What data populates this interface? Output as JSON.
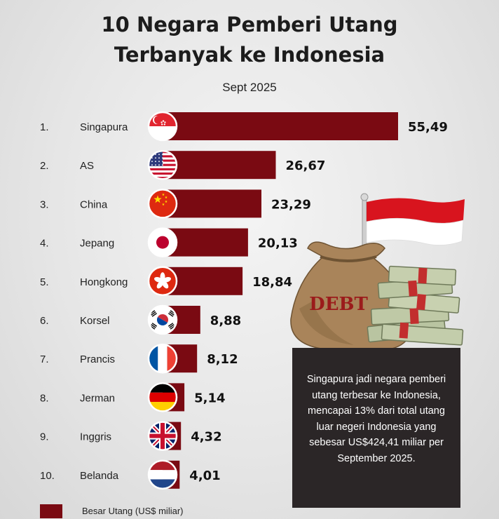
{
  "header": {
    "title_line1": "10 Negara Pemberi Utang",
    "title_line2": "Terbanyak ke Indonesia",
    "subtitle": "Sept 2025"
  },
  "legend": {
    "label": "Besar Utang (US$ miliar)",
    "color": "#7a0a12"
  },
  "info": {
    "text": "Singapura jadi negara pemberi utang terbesar ke Indonesia, mencapai 13% dari total utang luar negeri Indonesia yang sebesar US$424,41 miliar per September 2025."
  },
  "illustration": {
    "bag_label": "DEBT",
    "icon": "debt-bag-money-flag-illustration"
  },
  "colors": {
    "bar": "#7a0a12",
    "box": "#2b2627"
  },
  "chart_data": {
    "type": "bar",
    "orientation": "horizontal",
    "ranks": [
      "1.",
      "2.",
      "3.",
      "4.",
      "5.",
      "6.",
      "7.",
      "8.",
      "9.",
      "10."
    ],
    "categories": [
      "Singapura",
      "AS",
      "China",
      "Jepang",
      "Hongkong",
      "Korsel",
      "Prancis",
      "Jerman",
      "Inggris",
      "Belanda"
    ],
    "values": [
      55.49,
      26.67,
      23.29,
      20.13,
      18.84,
      8.88,
      8.12,
      5.14,
      4.32,
      4.01
    ],
    "value_labels": [
      "55,49",
      "26,67",
      "23,29",
      "20,13",
      "18,84",
      "8,88",
      "8,12",
      "5,14",
      "4,32",
      "4,01"
    ],
    "flags": [
      "singapore-flag-icon",
      "usa-flag-icon",
      "china-flag-icon",
      "japan-flag-icon",
      "hongkong-flag-icon",
      "south-korea-flag-icon",
      "france-flag-icon",
      "germany-flag-icon",
      "uk-flag-icon",
      "netherlands-flag-icon"
    ],
    "series": [
      {
        "name": "Besar Utang (US$ miliar)",
        "values": [
          55.49,
          26.67,
          23.29,
          20.13,
          18.84,
          8.88,
          8.12,
          5.14,
          4.32,
          4.01
        ]
      }
    ],
    "xlim": [
      0,
      55.49
    ],
    "grid": false,
    "legend_position": "bottom-left"
  }
}
